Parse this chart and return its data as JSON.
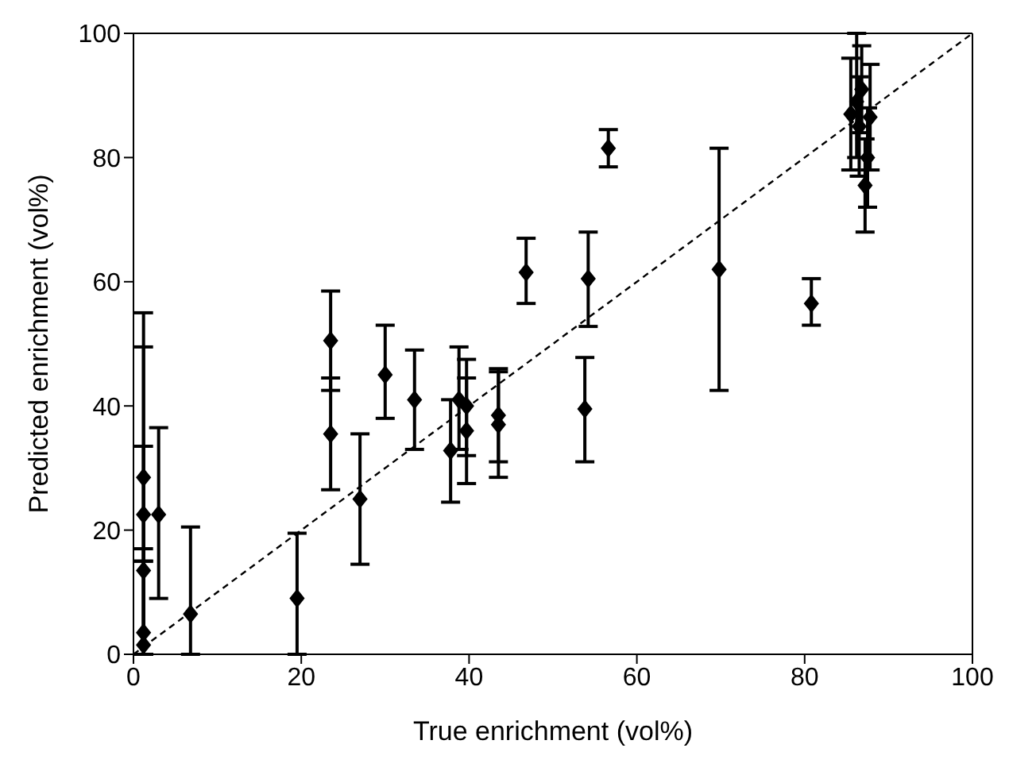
{
  "chart_data": {
    "type": "scatter",
    "xlabel": "True enrichment (vol%)",
    "ylabel": "Predicted enrichment (vol%)",
    "xlim": [
      0,
      100
    ],
    "ylim": [
      0,
      100
    ],
    "xticks": [
      0,
      20,
      40,
      60,
      80,
      100
    ],
    "yticks": [
      0,
      20,
      40,
      60,
      80,
      100
    ],
    "legend": false,
    "marker": "diamond",
    "series": [
      {
        "color": "#000000",
        "x": [
          1.2,
          1.2,
          1.2,
          1.2,
          1.2,
          3,
          6.8,
          19.5,
          23.5,
          23.5,
          27,
          30,
          33.5,
          37.8,
          38.8,
          39.7,
          39.7,
          43.5,
          43.5,
          46.8,
          53.8,
          54.2,
          56.6,
          69.8,
          80.8,
          85.5,
          86.2,
          86.5,
          86.8,
          87.2,
          87.5,
          87.8
        ],
        "values": [
          28.5,
          22.5,
          13.5,
          3.5,
          1.5,
          22.5,
          6.5,
          9,
          50.5,
          35.5,
          25,
          45,
          41,
          32.8,
          41,
          40,
          36,
          38.5,
          37,
          61.5,
          39.5,
          60.5,
          81.5,
          62,
          56.5,
          87,
          89,
          85,
          91,
          75.5,
          80,
          86.5
        ],
        "errors": [
          [
            15,
            55
          ],
          [
            0,
            49.5
          ],
          [
            0,
            33.5
          ],
          [
            0,
            17
          ],
          [
            0,
            15
          ],
          [
            9,
            36.5
          ],
          [
            0,
            20.5
          ],
          [
            0,
            19.5
          ],
          [
            42.5,
            58.5
          ],
          [
            26.5,
            44.5
          ],
          [
            14.5,
            35.5
          ],
          [
            38,
            53
          ],
          [
            33,
            49
          ],
          [
            24.5,
            41
          ],
          [
            33,
            49.5
          ],
          [
            32,
            47.5
          ],
          [
            27.5,
            44.5
          ],
          [
            31,
            46
          ],
          [
            28.5,
            45.5
          ],
          [
            56.5,
            67
          ],
          [
            31,
            47.8
          ],
          [
            52.8,
            68
          ],
          [
            78.5,
            84.5
          ],
          [
            42.5,
            81.5
          ],
          [
            53,
            60.5
          ],
          [
            78,
            96
          ],
          [
            80,
            100
          ],
          [
            77,
            93
          ],
          [
            84,
            98
          ],
          [
            68,
            83
          ],
          [
            72,
            88
          ],
          [
            78,
            95
          ]
        ]
      },
      {
        "type": "line",
        "color": "#000000",
        "line_style": "dashed",
        "marker": "none",
        "x": [
          0,
          100
        ],
        "values": [
          0,
          100
        ]
      }
    ]
  }
}
